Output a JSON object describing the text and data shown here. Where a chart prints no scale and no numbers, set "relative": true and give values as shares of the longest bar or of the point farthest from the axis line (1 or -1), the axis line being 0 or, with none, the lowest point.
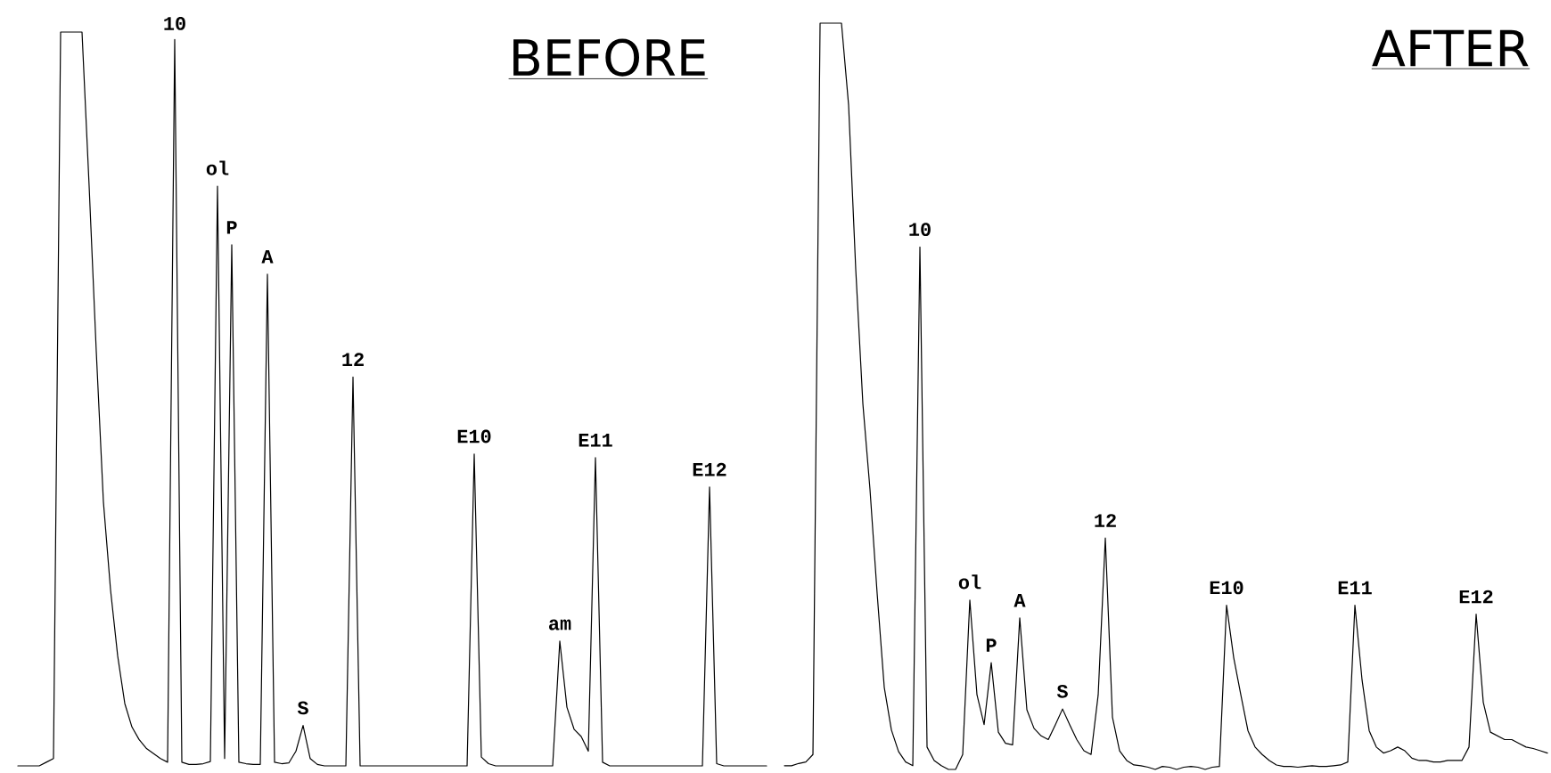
{
  "chart_data": [
    {
      "type": "line",
      "title": "BEFORE",
      "relative": true,
      "categories": [
        null,
        null,
        null,
        null,
        null,
        null,
        null,
        null,
        null,
        null,
        null,
        null,
        null,
        null,
        null,
        null,
        null,
        null,
        null,
        null,
        null,
        null,
        null,
        null,
        null,
        null,
        null,
        null,
        null,
        null,
        null,
        null,
        null,
        null,
        null,
        null,
        null,
        null,
        null,
        null,
        null,
        null,
        null,
        null,
        null,
        null,
        null,
        null,
        null,
        null,
        null,
        null,
        null,
        null,
        null,
        null,
        null,
        null,
        null,
        null,
        null,
        null,
        null,
        null,
        null,
        null,
        null,
        null,
        null,
        null,
        null,
        null,
        null,
        null,
        null,
        null,
        null,
        null,
        null,
        null,
        null,
        null,
        null,
        null,
        null,
        null,
        null,
        null,
        null,
        null,
        null,
        null,
        null,
        null,
        null,
        null,
        null,
        null,
        null,
        null,
        null,
        null,
        null,
        null,
        null,
        null
      ],
      "series": [
        {
          "color": "#000000",
          "values": [
            0,
            0,
            0,
            0,
            0.005,
            0.01,
            1,
            1,
            1,
            1,
            0.79,
            0.565,
            0.36,
            0.24,
            0.15,
            0.085,
            0.053,
            0.036,
            0.024,
            0.017,
            0.01,
            0.005,
            0.99,
            0.005,
            0.002,
            0.002,
            0.003,
            0.006,
            0.79,
            0.01,
            0.71,
            0.005,
            0.003,
            0.002,
            0.002,
            0.67,
            0.005,
            0.003,
            0.004,
            0.02,
            0.055,
            0.01,
            0.002,
            0,
            0,
            0,
            0,
            0.53,
            0,
            0,
            0,
            0,
            0,
            0,
            0,
            0,
            0,
            0,
            0,
            0,
            0,
            0,
            0,
            0,
            0.425,
            0.012,
            0.003,
            0,
            0,
            0,
            0,
            0,
            0,
            0,
            0,
            0,
            0.17,
            0.08,
            0.05,
            0.04,
            0.02,
            0.42,
            0.005,
            0,
            0,
            0,
            0,
            0,
            0,
            0,
            0,
            0,
            0,
            0,
            0,
            0,
            0,
            0.38,
            0.003,
            0,
            0,
            0,
            0,
            0,
            0,
            0
          ]
        }
      ],
      "annotations": [
        {
          "text": "10",
          "y": 0.99
        },
        {
          "text": "ol",
          "y": 0.79
        },
        {
          "text": "P",
          "y": 0.71
        },
        {
          "text": "A",
          "y": 0.67
        },
        {
          "text": "S",
          "y": 0.055
        },
        {
          "text": "12",
          "y": 0.53
        },
        {
          "text": "E10",
          "y": 0.425
        },
        {
          "text": "am",
          "y": 0.17
        },
        {
          "text": "E11",
          "y": 0.42
        },
        {
          "text": "E12",
          "y": 0.38
        }
      ]
    },
    {
      "type": "line",
      "title": "AFTER",
      "relative": true,
      "categories": [
        null,
        null,
        null,
        null,
        null,
        null,
        null,
        null,
        null,
        null,
        null,
        null,
        null,
        null,
        null,
        null,
        null,
        null,
        null,
        null,
        null,
        null,
        null,
        null,
        null,
        null,
        null,
        null,
        null,
        null,
        null,
        null,
        null,
        null,
        null,
        null,
        null,
        null,
        null,
        null,
        null,
        null,
        null,
        null,
        null,
        null,
        null,
        null,
        null,
        null,
        null,
        null,
        null,
        null,
        null,
        null,
        null,
        null,
        null,
        null,
        null,
        null,
        null,
        null,
        null,
        null,
        null,
        null,
        null,
        null,
        null,
        null,
        null,
        null,
        null,
        null,
        null,
        null,
        null,
        null,
        null,
        null,
        null,
        null,
        null,
        null,
        null,
        null,
        null,
        null,
        null,
        null,
        null,
        null,
        null,
        null,
        null,
        null,
        null,
        null,
        null,
        null,
        null,
        null,
        null,
        null,
        null,
        null
      ],
      "series": [
        {
          "color": "#000000",
          "values": [
            0.005,
            0.005,
            0.008,
            0.01,
            0.02,
            1,
            1,
            1,
            1,
            0.89,
            0.67,
            0.49,
            0.375,
            0.236,
            0.11,
            0.053,
            0.024,
            0.01,
            0.005,
            0.7,
            0.03,
            0.012,
            0.005,
            0,
            0,
            0.02,
            0.227,
            0.1,
            0.06,
            0.143,
            0.05,
            0.035,
            0.033,
            0.203,
            0.08,
            0.055,
            0.045,
            0.04,
            0.06,
            0.081,
            0.06,
            0.04,
            0.025,
            0.02,
            0.1,
            0.31,
            0.07,
            0.025,
            0.012,
            0.006,
            0.005,
            0.003,
            0,
            0.004,
            0.003,
            0,
            0.003,
            0.004,
            0.003,
            0,
            0.003,
            0.004,
            0.22,
            0.15,
            0.1,
            0.052,
            0.03,
            0.02,
            0.012,
            0.006,
            0.004,
            0.004,
            0.003,
            0.004,
            0.005,
            0.004,
            0.004,
            0.005,
            0.006,
            0.01,
            0.22,
            0.12,
            0.052,
            0.03,
            0.022,
            0.025,
            0.03,
            0.025,
            0.015,
            0.012,
            0.012,
            0.01,
            0.01,
            0.012,
            0.012,
            0.012,
            0.03,
            0.208,
            0.09,
            0.05,
            0.045,
            0.04,
            0.04,
            0.035,
            0.03,
            0.028,
            0.025,
            0.022
          ]
        }
      ],
      "annotations": [
        {
          "text": "10",
          "y": 0.7
        },
        {
          "text": "ol",
          "y": 0.227
        },
        {
          "text": "P",
          "y": 0.143
        },
        {
          "text": "A",
          "y": 0.203
        },
        {
          "text": "S",
          "y": 0.081
        },
        {
          "text": "12",
          "y": 0.31
        },
        {
          "text": "E10",
          "y": 0.22
        },
        {
          "text": "E11",
          "y": 0.22
        },
        {
          "text": "E12",
          "y": 0.208
        }
      ]
    }
  ]
}
